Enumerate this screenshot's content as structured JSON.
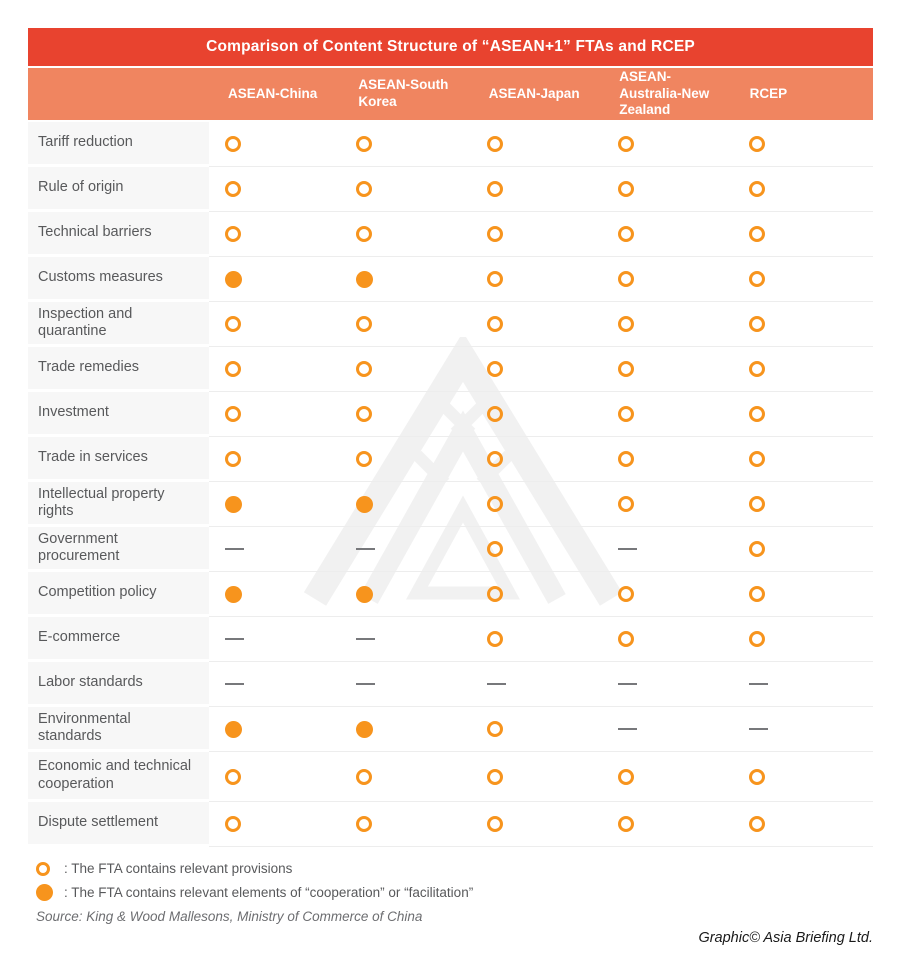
{
  "title": "Comparison of Content Structure of “ASEAN+1” FTAs and RCEP",
  "chart_data": {
    "type": "table",
    "title": "Comparison of Content Structure of “ASEAN+1” FTAs and RCEP",
    "columns": [
      "ASEAN-China",
      "ASEAN-South Korea",
      "ASEAN-Japan",
      "ASEAN-Australia-New Zealand",
      "RCEP"
    ],
    "rows": [
      {
        "label": "Tariff reduction",
        "values": [
          "open",
          "open",
          "open",
          "open",
          "open"
        ]
      },
      {
        "label": "Rule of origin",
        "values": [
          "open",
          "open",
          "open",
          "open",
          "open"
        ]
      },
      {
        "label": "Technical barriers",
        "values": [
          "open",
          "open",
          "open",
          "open",
          "open"
        ]
      },
      {
        "label": "Customs measures",
        "values": [
          "filled",
          "filled",
          "open",
          "open",
          "open"
        ]
      },
      {
        "label": "Inspection and quarantine",
        "values": [
          "open",
          "open",
          "open",
          "open",
          "open"
        ]
      },
      {
        "label": "Trade remedies",
        "values": [
          "open",
          "open",
          "open",
          "open",
          "open"
        ]
      },
      {
        "label": "Investment",
        "values": [
          "open",
          "open",
          "open",
          "open",
          "open"
        ]
      },
      {
        "label": "Trade in services",
        "values": [
          "open",
          "open",
          "open",
          "open",
          "open"
        ]
      },
      {
        "label": "Intellectual property rights",
        "values": [
          "filled",
          "filled",
          "open",
          "open",
          "open"
        ]
      },
      {
        "label": "Government procurement",
        "values": [
          "dash",
          "dash",
          "open",
          "dash",
          "open"
        ]
      },
      {
        "label": "Competition policy",
        "values": [
          "filled",
          "filled",
          "open",
          "open",
          "open"
        ]
      },
      {
        "label": "E-commerce",
        "values": [
          "dash",
          "dash",
          "open",
          "open",
          "open"
        ]
      },
      {
        "label": "Labor standards",
        "values": [
          "dash",
          "dash",
          "dash",
          "dash",
          "dash"
        ]
      },
      {
        "label": "Environmental standards",
        "values": [
          "filled",
          "filled",
          "open",
          "dash",
          "dash"
        ]
      },
      {
        "label": "Economic and technical cooperation",
        "values": [
          "open",
          "open",
          "open",
          "open",
          "open"
        ]
      },
      {
        "label": "Dispute settlement",
        "values": [
          "open",
          "open",
          "open",
          "open",
          "open"
        ]
      }
    ],
    "symbol_legend": {
      "open": "The FTA contains relevant provisions",
      "filled": "The FTA contains relevant elements of “cooperation” or “facilitation”"
    }
  },
  "legend": [
    {
      "symbol": "open",
      "text": ": The FTA contains relevant provisions"
    },
    {
      "symbol": "filled",
      "text": ": The FTA contains relevant elements of “cooperation” or “facilitation”"
    }
  ],
  "source": "Source: King & Wood Mallesons, Ministry of Commerce of China",
  "credit": "Graphic© Asia Briefing Ltd.",
  "colors": {
    "title_bar": "#E8432F",
    "header_bar": "#F08560",
    "symbol_orange": "#F7941D",
    "dash_gray": "#77787B",
    "label_bg": "#F7F7F7",
    "label_text": "#58595B"
  }
}
